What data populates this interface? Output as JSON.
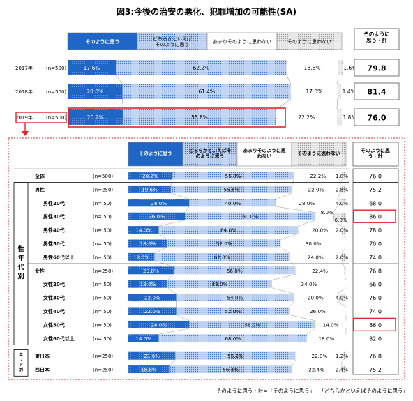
{
  "chart_data": {
    "type": "bar",
    "stacked": "100%",
    "title": "図3:今後の治安の悪化、犯罪増加の可能性(SA)",
    "legend": [
      "そのように思う",
      "どちらかといえば\nそのように思う",
      "あまりそのように思わない",
      "そのように思わない"
    ],
    "legend_bottom": [
      "そのように思う",
      "どちらかといえばそ\nのように思う",
      "あまりそのように思\nわない",
      "そのように思わない"
    ],
    "total_header": "そのように\n思う・計",
    "total_header_bottom": "そのように思\nう・計",
    "colors": [
      "#1f66c6",
      "#aec7ec",
      "#ffffff",
      "#d7d7d7"
    ],
    "yearly": [
      {
        "label": "2017年",
        "n": "(n=500)",
        "values": [
          "17.6%",
          "62.2%",
          "18.8%",
          "1.6%"
        ],
        "total": "79.8"
      },
      {
        "label": "2018年",
        "n": "(n=500)",
        "values": [
          "20.0%",
          "61.4%",
          "17.0%",
          "1.4%"
        ],
        "total": "81.4"
      },
      {
        "label": "2019年",
        "n": "(n=500)",
        "values": [
          "20.2%",
          "55.8%",
          "22.2%",
          "1.8%"
        ],
        "total": "76.0"
      }
    ],
    "breakdown": [
      {
        "label": "全体",
        "n": "(n=500)",
        "values": [
          "20.2%",
          "55.8%",
          "22.2%",
          "1.8%"
        ],
        "total": "76.0"
      },
      {
        "label": "男性",
        "n": "(n=250)",
        "values": [
          "19.6%",
          "55.6%",
          "22.0%",
          "2.8%"
        ],
        "total": "75.2"
      },
      {
        "label": "男性20代",
        "n": "(n= 50)",
        "values": [
          "28.0%",
          "40.0%",
          "28.0%",
          "4.0%"
        ],
        "total": "68.0"
      },
      {
        "label": "男性30代",
        "n": "(n= 50)",
        "values": [
          "26.0%",
          "60.0%",
          "8.0%",
          "6.0%"
        ],
        "total": "86.0",
        "highlight": true
      },
      {
        "label": "男性40代",
        "n": "(n= 50)",
        "values": [
          "14.0%",
          "64.0%",
          "20.0%",
          "2.0%"
        ],
        "total": "78.0"
      },
      {
        "label": "男性50代",
        "n": "(n= 50)",
        "values": [
          "18.0%",
          "52.0%",
          "30.0%",
          ""
        ],
        "total": "70.0"
      },
      {
        "label": "男性60代以上",
        "n": "(n= 50)",
        "values": [
          "12.0%",
          "62.0%",
          "24.0%",
          "2.0%"
        ],
        "total": "74.0"
      },
      {
        "label": "女性",
        "n": "(n=250)",
        "values": [
          "20.8%",
          "56.0%",
          "22.4%",
          ""
        ],
        "total": "76.8"
      },
      {
        "label": "女性20代",
        "n": "(n= 50)",
        "values": [
          "18.0%",
          "48.0%",
          "34.0%",
          ""
        ],
        "total": "66.0"
      },
      {
        "label": "女性30代",
        "n": "(n= 50)",
        "values": [
          "22.0%",
          "54.0%",
          "20.0%",
          "4.0%"
        ],
        "total": "76.0"
      },
      {
        "label": "女性40代",
        "n": "(n= 50)",
        "values": [
          "22.0%",
          "52.0%",
          "26.0%",
          ""
        ],
        "total": "74.0"
      },
      {
        "label": "女性50代",
        "n": "(n= 50)",
        "values": [
          "28.0%",
          "58.0%",
          "14.0%",
          ""
        ],
        "total": "86.0",
        "highlight": true
      },
      {
        "label": "女性60代以上",
        "n": "(n= 50)",
        "values": [
          "14.0%",
          "68.0%",
          "18.0%",
          ""
        ],
        "total": "82.0"
      },
      {
        "label": "東日本",
        "n": "(n=250)",
        "values": [
          "21.6%",
          "55.2%",
          "22.0%",
          "1.2%"
        ],
        "total": "76.8"
      },
      {
        "label": "西日本",
        "n": "(n=250)",
        "values": [
          "18.8%",
          "56.4%",
          "22.4%",
          "2.4%"
        ],
        "total": "75.2"
      }
    ],
    "group_labels": [
      "性年代別",
      "エリア別"
    ],
    "footnote": "そのように思う・計=「そのように思う」+「どちらかといえばそのように思う」"
  }
}
